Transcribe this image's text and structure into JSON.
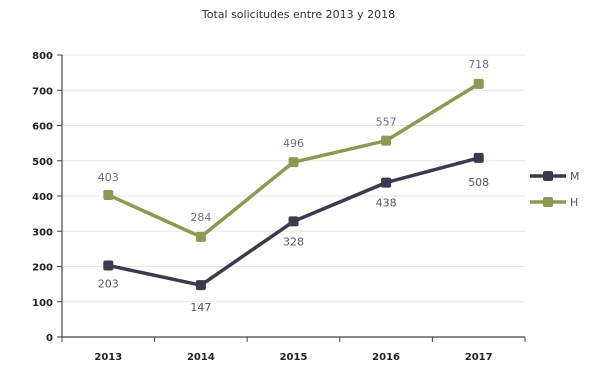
{
  "chart_data": {
    "type": "line",
    "title": "Total solicitudes entre 2013 y 2018",
    "xlabel": "",
    "ylabel": "",
    "categories": [
      "2013",
      "2014",
      "2015",
      "2016",
      "2017"
    ],
    "ylim": [
      0,
      800
    ],
    "yticks": [
      "0",
      "100",
      "200",
      "300",
      "400",
      "500",
      "600",
      "700",
      "800"
    ],
    "grid": true,
    "legend": "right",
    "series": [
      {
        "name": "M",
        "values": [
          203,
          147,
          328,
          438,
          508
        ],
        "labels": [
          "203",
          "147",
          "328",
          "438",
          "508"
        ],
        "color": "#3d3a4d"
      },
      {
        "name": "H",
        "values": [
          403,
          284,
          496,
          557,
          718
        ],
        "labels": [
          "403",
          "284",
          "496",
          "557",
          "718"
        ],
        "color": "#8b9a52"
      }
    ]
  }
}
